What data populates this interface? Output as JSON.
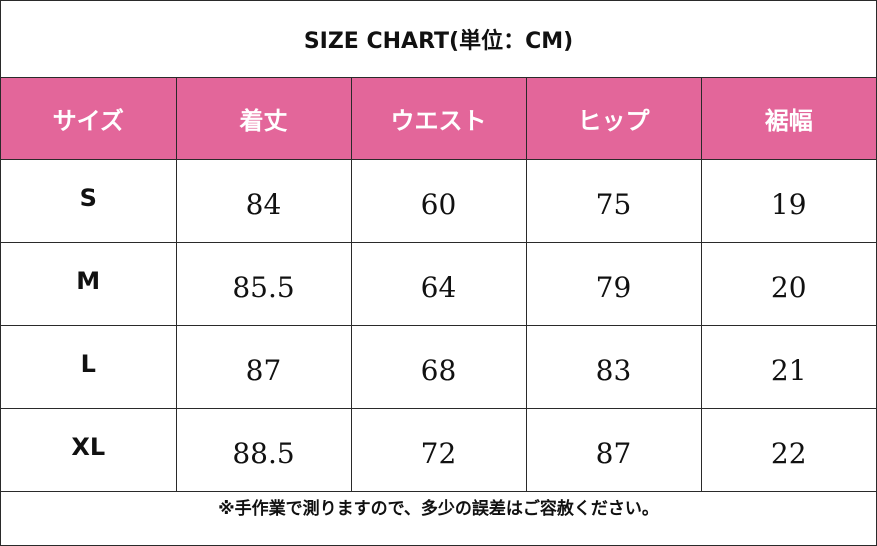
{
  "title": "SIZE CHART(単位：CM)",
  "headers": [
    "サイズ",
    "着丈",
    "ウエスト",
    "ヒップ",
    "裾幅"
  ],
  "rows": [
    {
      "size": "S",
      "length": "84",
      "waist": "60",
      "hip": "75",
      "hem": "19"
    },
    {
      "size": "M",
      "length": "85.5",
      "waist": "64",
      "hip": "79",
      "hem": "20"
    },
    {
      "size": "L",
      "length": "87",
      "waist": "68",
      "hip": "83",
      "hem": "21"
    },
    {
      "size": "XL",
      "length": "88.5",
      "waist": "72",
      "hip": "87",
      "hem": "22"
    }
  ],
  "note": "※手作業で測りますので、多少の誤差はご容赦ください。",
  "colors": {
    "header_bg": "#e3669a",
    "header_text": "#ffffff",
    "border": "#2a2a2a"
  }
}
